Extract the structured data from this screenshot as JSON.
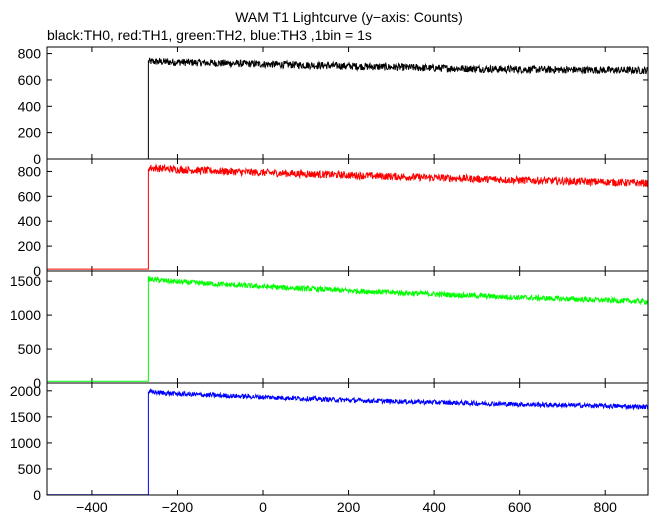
{
  "title": "WAM T1 Lightcurve (y−axis: Counts)",
  "subtitle": "black:TH0, red:TH1, green:TH2, blue:TH3 ,1bin = 1s",
  "chart_data": {
    "type": "line",
    "title": "WAM T1 Lightcurve (y−axis: Counts)",
    "subtitle": "black:TH0, red:TH1, green:TH2, blue:TH3 ,1bin = 1s",
    "xlim": [
      -505,
      900
    ],
    "x_ticks": [
      -400,
      -200,
      0,
      200,
      400,
      600,
      800
    ],
    "x_tick_labels": [
      "−400",
      "−200",
      "0",
      "200",
      "400",
      "600",
      "800"
    ],
    "step_at_x": -268,
    "bin_size_s": 1,
    "grid": false,
    "series": [
      {
        "name": "TH0",
        "color": "#000000",
        "ylim": [
          0,
          850
        ],
        "y_ticks": [
          0,
          200,
          400,
          600,
          800
        ],
        "x": [
          -505,
          -269,
          -268,
          -200,
          0,
          200,
          400,
          600,
          800,
          900
        ],
        "values": [
          0,
          0,
          740,
          735,
          720,
          705,
          690,
          680,
          675,
          672
        ],
        "noise_amplitude": 28
      },
      {
        "name": "TH1",
        "color": "#ff0000",
        "ylim": [
          0,
          900
        ],
        "y_ticks": [
          0,
          200,
          400,
          600,
          800
        ],
        "x": [
          -505,
          -269,
          -268,
          -200,
          0,
          200,
          400,
          600,
          800,
          900
        ],
        "values": [
          15,
          15,
          830,
          815,
          790,
          770,
          750,
          730,
          715,
          705
        ],
        "noise_amplitude": 30
      },
      {
        "name": "TH2",
        "color": "#00ff00",
        "ylim": [
          0,
          1650
        ],
        "y_ticks": [
          0,
          500,
          1000,
          1500
        ],
        "x": [
          -505,
          -269,
          -268,
          -200,
          0,
          200,
          400,
          600,
          800,
          900
        ],
        "values": [
          25,
          25,
          1530,
          1490,
          1420,
          1360,
          1310,
          1260,
          1220,
          1200
        ],
        "noise_amplitude": 40
      },
      {
        "name": "TH3",
        "color": "#0000ff",
        "ylim": [
          0,
          2150
        ],
        "y_ticks": [
          0,
          500,
          1000,
          1500,
          2000
        ],
        "x": [
          -505,
          -269,
          -268,
          -200,
          0,
          200,
          400,
          600,
          800,
          900
        ],
        "values": [
          5,
          5,
          1980,
          1940,
          1880,
          1820,
          1780,
          1740,
          1710,
          1690
        ],
        "noise_amplitude": 45
      }
    ]
  }
}
